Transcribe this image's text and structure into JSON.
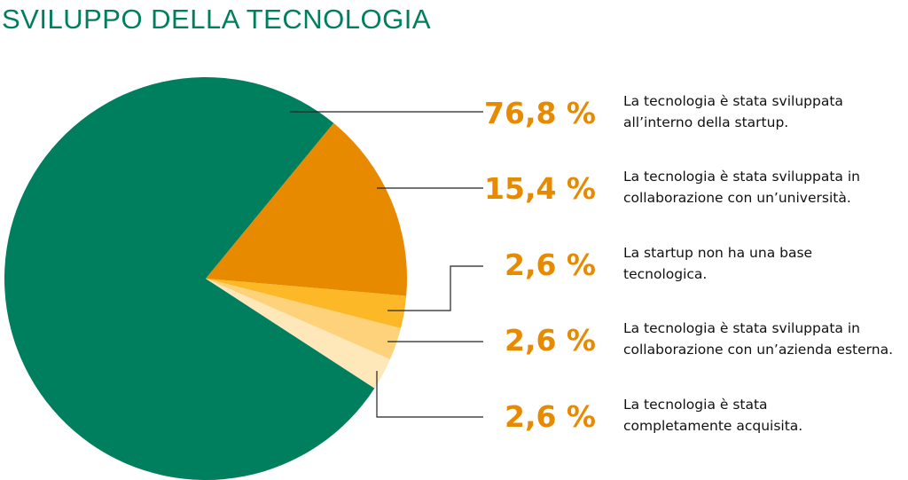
{
  "chart_data": {
    "type": "pie",
    "title": "SVILUPPO DELLA TECNOLOGIA",
    "categories": [
      "La tecnologia è stata sviluppata\nall’interno della startup.",
      "La tecnologia è stata sviluppata in\ncollaborazione con un’università.",
      "La startup non ha una base\ntecnologica.",
      "La tecnologia è stata sviluppata in\ncollaborazione con un’azienda esterna.",
      "La tecnologia è stata\ncompletamente acquisita."
    ],
    "values": [
      76.8,
      15.4,
      2.6,
      2.6,
      2.6
    ],
    "value_labels": [
      "76,8 %",
      "15,4 %",
      "2,6 %",
      "2,6 %",
      "2,6 %"
    ],
    "colors": [
      "#007f5f",
      "#e88a00",
      "#fdb827",
      "#fdd27a",
      "#fee7b8"
    ]
  }
}
